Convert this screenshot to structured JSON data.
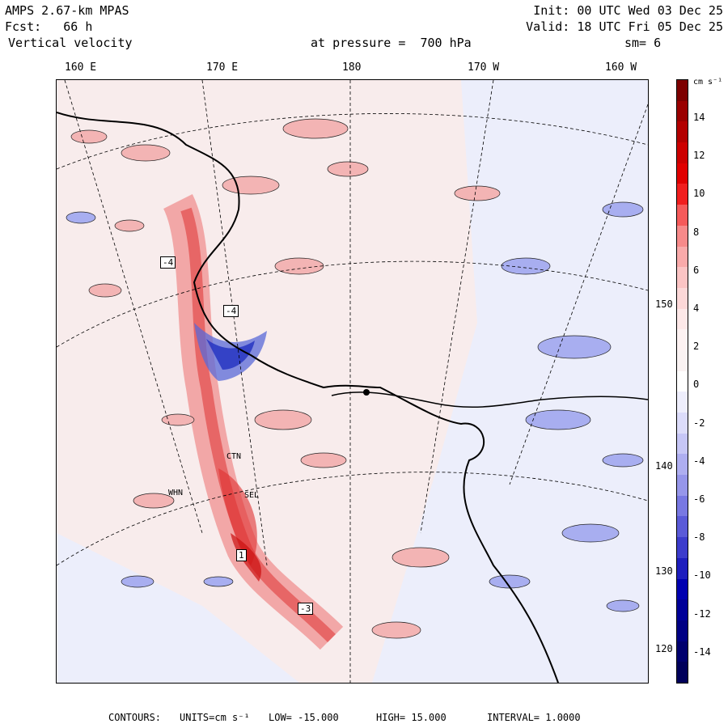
{
  "header": {
    "model": "AMPS 2.67-km MPAS",
    "fcst_label": "Fcst:",
    "fcst_value": "66 h",
    "variable": "Vertical velocity",
    "level_label": "at pressure =",
    "level_value": "700 hPa",
    "init": "Init: 00 UTC Wed 03 Dec 25",
    "valid": "Valid: 18 UTC Fri 05 Dec 25",
    "smoothing": "sm= 6"
  },
  "longitude_labels": [
    "160 E",
    "170 E",
    "180",
    "170 W",
    "160 W"
  ],
  "latitude_labels": [
    "150 W",
    "140 W",
    "130 W",
    "120 W"
  ],
  "colorbar": {
    "unit": "cm s⁻¹",
    "ticks": [
      "14",
      "12",
      "10",
      "8",
      "6",
      "4",
      "2",
      "0",
      "-2",
      "-4",
      "-6",
      "-8",
      "-10",
      "-12",
      "-14"
    ],
    "colors": [
      "#7d0000",
      "#9a0000",
      "#b30000",
      "#cc0000",
      "#e00000",
      "#f01e1e",
      "#f55a5a",
      "#f78a8a",
      "#f9aaaa",
      "#fbc4c4",
      "#fcd8d8",
      "#fde8e8",
      "#fdf2f2",
      "#faf3f3",
      "#ffffff",
      "#eeeefc",
      "#dcdcfa",
      "#c6c6f6",
      "#aeaef0",
      "#9696ea",
      "#7878e2",
      "#5a5ad8",
      "#3c3ccc",
      "#1e1ebe",
      "#0000b0",
      "#000098",
      "#000084",
      "#00006e",
      "#00005a"
    ]
  },
  "footer": {
    "label": "CONTOURS:",
    "units_label": "UNITS=cm s⁻¹",
    "low": "LOW= -15.000",
    "high": "HIGH= 15.000",
    "interval": "INTERVAL= 1.0000"
  },
  "map_labels": {
    "box_a": "-4",
    "box_b": "-4",
    "box_c": "1",
    "box_d": "-3",
    "stn_1": "CTN",
    "stn_2": "WHN",
    "stn_3": "SEL"
  },
  "colors": {
    "positive": "#f6b0b0",
    "negative": "#9ea6ec",
    "background_pos": "#f7e6e6",
    "background_neg": "#e6e8fb"
  }
}
